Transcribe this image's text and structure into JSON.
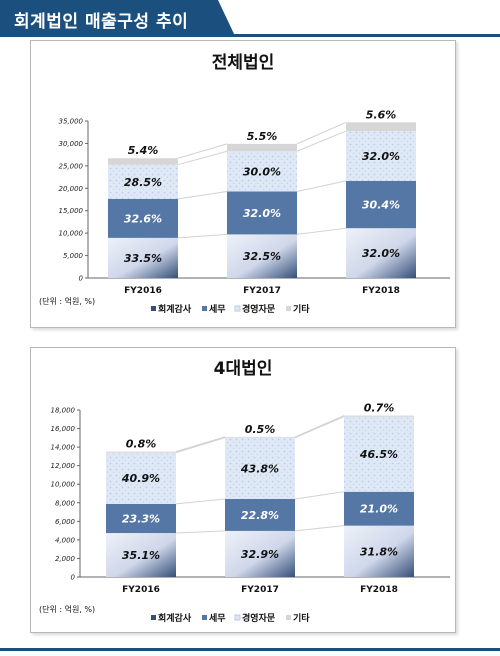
{
  "header": {
    "title": "회계법인 매출구성 추이"
  },
  "colors": {
    "header_bg": "#1b4f7d",
    "audit": "#cfd7ea",
    "audit_dark": "#344f78",
    "tax": "#5477a6",
    "advisory": "#dfe9f6",
    "other": "#d6d6d6"
  },
  "chart_data": [
    {
      "type": "bar",
      "stacked": true,
      "title": "전체법인",
      "unit_note": "(단위 : 억원, %)",
      "categories": [
        "FY2016",
        "FY2017",
        "FY2018"
      ],
      "ylim": [
        0,
        35000
      ],
      "yticks": [
        "0",
        "5,000",
        "10,000",
        "15,000",
        "20,000",
        "25,000",
        "30,000",
        "35,000"
      ],
      "totals": [
        26700,
        29900,
        34700
      ],
      "series": [
        {
          "name": "회계감사",
          "percent": [
            "33.5%",
            "32.5%",
            "32.0%"
          ],
          "share": [
            33.5,
            32.5,
            32.0
          ]
        },
        {
          "name": "세무",
          "percent": [
            "32.6%",
            "32.0%",
            "30.4%"
          ],
          "share": [
            32.6,
            32.0,
            30.4
          ]
        },
        {
          "name": "경영자문",
          "percent": [
            "28.5%",
            "30.0%",
            "32.0%"
          ],
          "share": [
            28.5,
            30.0,
            32.0
          ]
        },
        {
          "name": "기타",
          "percent": [
            "5.4%",
            "5.5%",
            "5.6%"
          ],
          "share": [
            5.4,
            5.5,
            5.6
          ]
        }
      ],
      "legend": "bottom"
    },
    {
      "type": "bar",
      "stacked": true,
      "title": "4대법인",
      "unit_note": "(단위 : 억원, %)",
      "categories": [
        "FY2016",
        "FY2017",
        "FY2018"
      ],
      "ylim": [
        0,
        18000
      ],
      "yticks": [
        "0",
        "2,000",
        "4,000",
        "6,000",
        "8,000",
        "10,000",
        "12,000",
        "14,000",
        "16,000",
        "18,000"
      ],
      "totals": [
        13500,
        15100,
        17400
      ],
      "series": [
        {
          "name": "회계감사",
          "percent": [
            "35.1%",
            "32.9%",
            "31.8%"
          ],
          "share": [
            35.1,
            32.9,
            31.8
          ]
        },
        {
          "name": "세무",
          "percent": [
            "23.3%",
            "22.8%",
            "21.0%"
          ],
          "share": [
            23.3,
            22.8,
            21.0
          ]
        },
        {
          "name": "경영자문",
          "percent": [
            "40.9%",
            "43.8%",
            "46.5%"
          ],
          "share": [
            40.9,
            43.8,
            46.5
          ]
        },
        {
          "name": "기타",
          "percent": [
            "0.8%",
            "0.5%",
            "0.7%"
          ],
          "share": [
            0.8,
            0.5,
            0.7
          ]
        }
      ],
      "legend": "bottom"
    }
  ]
}
